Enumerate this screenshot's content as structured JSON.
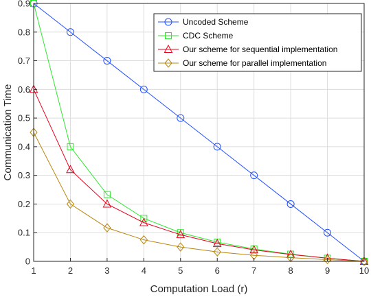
{
  "chart_data": {
    "type": "line",
    "xlabel": "Computation Load (r)",
    "ylabel": "Communication Time",
    "xlim": [
      1,
      10
    ],
    "ylim": [
      0,
      0.9
    ],
    "x_ticks": [
      "1",
      "2",
      "3",
      "4",
      "5",
      "6",
      "7",
      "8",
      "9",
      "10"
    ],
    "y_ticks": [
      "0",
      "0.1",
      "0.2",
      "0.3",
      "0.4",
      "0.5",
      "0.6",
      "0.7",
      "0.8",
      "0.9"
    ],
    "grid": true,
    "legend_position": "top-right",
    "x": [
      1,
      2,
      3,
      4,
      5,
      6,
      7,
      8,
      9,
      10
    ],
    "series": [
      {
        "name": "Uncoded Scheme",
        "color": "#1f4fff",
        "marker": "circle",
        "values": [
          0.9,
          0.8,
          0.7,
          0.6,
          0.5,
          0.4,
          0.3,
          0.2,
          0.1,
          0.0
        ]
      },
      {
        "name": "CDC Scheme",
        "color": "#2ee82e",
        "marker": "square",
        "values": [
          0.9,
          0.4,
          0.233,
          0.15,
          0.1,
          0.067,
          0.043,
          0.025,
          0.011,
          0.0
        ]
      },
      {
        "name": "Our scheme for sequential implementation",
        "color": "#e8001c",
        "marker": "triangle",
        "values": [
          0.6,
          0.32,
          0.2,
          0.135,
          0.093,
          0.062,
          0.04,
          0.024,
          0.011,
          0.0
        ]
      },
      {
        "name": "Our scheme for parallel implementation",
        "color": "#b8860b",
        "marker": "diamond",
        "values": [
          0.45,
          0.2,
          0.117,
          0.075,
          0.05,
          0.033,
          0.021,
          0.013,
          0.006,
          0.0
        ]
      }
    ]
  }
}
